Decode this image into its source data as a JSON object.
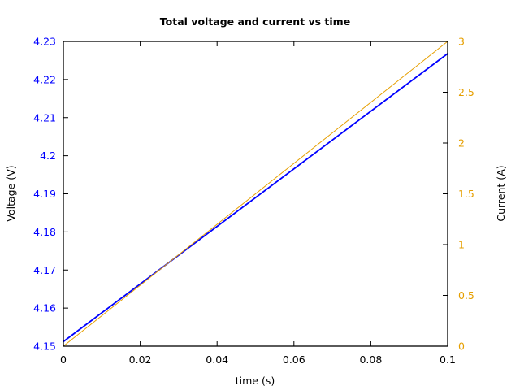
{
  "chart_data": {
    "type": "line",
    "title": "Total voltage and current vs time",
    "xlabel": "time (s)",
    "ylabel": "Voltage (V)",
    "y2label": "Current (A)",
    "xlim": [
      0,
      0.1
    ],
    "ylim": [
      4.15,
      4.23
    ],
    "y2lim": [
      0,
      3
    ],
    "xticks": [
      "0",
      "0.02",
      "0.04",
      "0.06",
      "0.08",
      "0.1"
    ],
    "yticks": [
      "4.15",
      "4.16",
      "4.17",
      "4.18",
      "4.19",
      "4.2",
      "4.21",
      "4.22",
      "4.23"
    ],
    "y2ticks": [
      "0",
      "0.5",
      "1",
      "1.5",
      "2",
      "2.5",
      "3"
    ],
    "grid": false,
    "legend": null,
    "series": [
      {
        "name": "Voltage",
        "axis": "left",
        "color": "#0000ff",
        "x": [
          0,
          0.1
        ],
        "values": [
          4.1512,
          4.2268
        ]
      },
      {
        "name": "Current",
        "axis": "right",
        "color": "#e69f00",
        "x": [
          0,
          0.1
        ],
        "values": [
          0,
          3
        ]
      }
    ]
  },
  "colors": {
    "voltage": "#0000ff",
    "current": "#e69f00",
    "axis": "#000000"
  }
}
